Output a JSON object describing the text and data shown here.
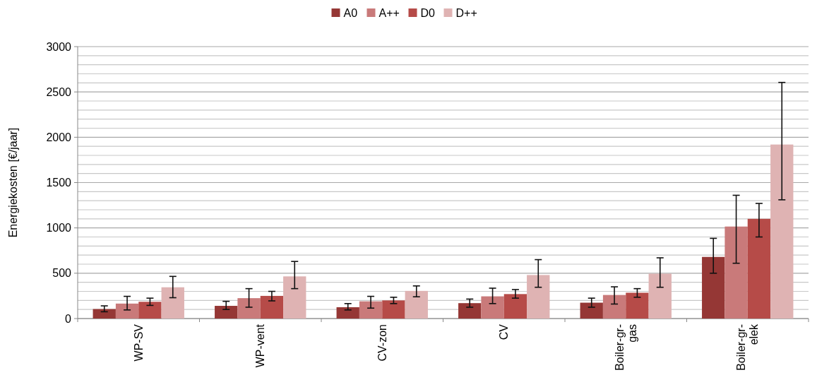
{
  "chart_data": {
    "type": "bar",
    "ylabel": "Energiekosten [€/jaar]",
    "categories": [
      "WP-SV",
      "WP-vent",
      "CV-zon",
      "CV",
      "Boiler-gr-gas",
      "Boiler-gr-elek"
    ],
    "series": [
      {
        "name": "A0",
        "color": "#953735",
        "values": [
          105,
          140,
          125,
          170,
          175,
          680
        ],
        "errors": [
          [
            75,
            140
          ],
          [
            100,
            190
          ],
          [
            95,
            165
          ],
          [
            125,
            215
          ],
          [
            125,
            225
          ],
          [
            500,
            885
          ]
        ]
      },
      {
        "name": "A++",
        "color": "#c97a7a",
        "values": [
          165,
          225,
          190,
          245,
          260,
          1015
        ],
        "errors": [
          [
            95,
            245
          ],
          [
            125,
            330
          ],
          [
            115,
            245
          ],
          [
            165,
            335
          ],
          [
            160,
            350
          ],
          [
            610,
            1360
          ]
        ]
      },
      {
        "name": "D0",
        "color": "#b64b48",
        "values": [
          185,
          250,
          200,
          270,
          285,
          1100
        ],
        "errors": [
          [
            145,
            225
          ],
          [
            195,
            300
          ],
          [
            165,
            235
          ],
          [
            225,
            320
          ],
          [
            235,
            330
          ],
          [
            900,
            1270
          ]
        ]
      },
      {
        "name": "D++",
        "color": "#dfb3b3",
        "values": [
          345,
          465,
          305,
          480,
          495,
          1920
        ],
        "errors": [
          [
            230,
            465
          ],
          [
            330,
            630
          ],
          [
            240,
            360
          ],
          [
            345,
            650
          ],
          [
            345,
            670
          ],
          [
            1310,
            2605
          ]
        ]
      }
    ],
    "ylim": [
      0,
      3000
    ],
    "yticks": [
      0,
      {
        "value": 100,
        "label": null
      },
      {
        "value": 200,
        "label": null
      },
      {
        "value": 300,
        "label": null
      },
      {
        "value": 400,
        "label": null
      },
      500,
      {
        "value": 600,
        "label": null
      },
      {
        "value": 700,
        "label": null
      },
      {
        "value": 800,
        "label": null
      },
      {
        "value": 900,
        "label": null
      },
      1000,
      {
        "value": 1100,
        "label": null
      },
      {
        "value": 1200,
        "label": null
      },
      {
        "value": 1300,
        "label": null
      },
      {
        "value": 1400,
        "label": null
      },
      1500,
      {
        "value": 1600,
        "label": null
      },
      {
        "value": 1700,
        "label": null
      },
      {
        "value": 1800,
        "label": null
      },
      {
        "value": 1900,
        "label": null
      },
      2000,
      {
        "value": 2100,
        "label": null
      },
      {
        "value": 2200,
        "label": null
      },
      {
        "value": 2300,
        "label": null
      },
      {
        "value": 2400,
        "label": null
      },
      2500,
      {
        "value": 2600,
        "label": null
      },
      {
        "value": 2700,
        "label": null
      },
      {
        "value": 2800,
        "label": null
      },
      {
        "value": 2900,
        "label": null
      },
      3000
    ],
    "grid": "y",
    "legend": "top"
  }
}
